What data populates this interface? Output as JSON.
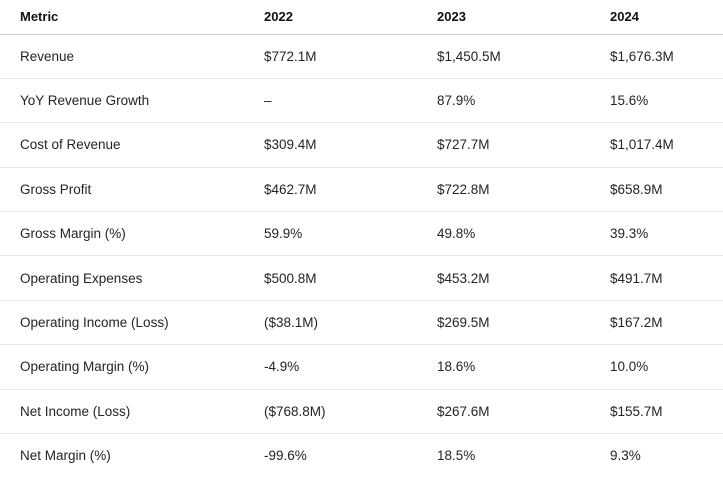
{
  "table": {
    "headers": [
      "Metric",
      "2022",
      "2023",
      "2024"
    ],
    "rows": [
      {
        "metric": "Revenue",
        "y2022": "$772.1M",
        "y2023": "$1,450.5M",
        "y2024": "$1,676.3M"
      },
      {
        "metric": "YoY Revenue Growth",
        "y2022": "–",
        "y2023": "87.9%",
        "y2024": "15.6%"
      },
      {
        "metric": "Cost of Revenue",
        "y2022": "$309.4M",
        "y2023": "$727.7M",
        "y2024": "$1,017.4M"
      },
      {
        "metric": "Gross Profit",
        "y2022": "$462.7M",
        "y2023": "$722.8M",
        "y2024": "$658.9M"
      },
      {
        "metric": "Gross Margin (%)",
        "y2022": "59.9%",
        "y2023": "49.8%",
        "y2024": "39.3%"
      },
      {
        "metric": "Operating Expenses",
        "y2022": "$500.8M",
        "y2023": "$453.2M",
        "y2024": "$491.7M"
      },
      {
        "metric": "Operating Income (Loss)",
        "y2022": "($38.1M)",
        "y2023": "$269.5M",
        "y2024": "$167.2M"
      },
      {
        "metric": "Operating Margin (%)",
        "y2022": "-4.9%",
        "y2023": "18.6%",
        "y2024": "10.0%"
      },
      {
        "metric": "Net Income (Loss)",
        "y2022": "($768.8M)",
        "y2023": "$267.6M",
        "y2024": "$155.7M"
      },
      {
        "metric": "Net Margin (%)",
        "y2022": "-99.6%",
        "y2023": "18.5%",
        "y2024": "9.3%"
      }
    ]
  }
}
